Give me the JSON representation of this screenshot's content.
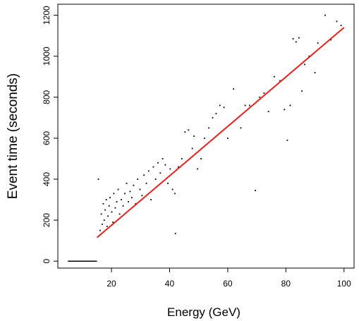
{
  "chart_data": {
    "type": "scatter",
    "xlabel": "Energy (GeV)",
    "ylabel": "Event time (seconds)",
    "xlim": [
      3,
      102
    ],
    "ylim": [
      -20,
      1240
    ],
    "x_ticks": [
      20,
      40,
      60,
      80,
      100
    ],
    "x_tick_labels": [
      "20",
      "40",
      "60",
      "80",
      "100"
    ],
    "y_ticks": [
      0,
      200,
      400,
      600,
      800,
      1000,
      1200
    ],
    "y_tick_labels": [
      "0",
      "200",
      "400",
      "600",
      "800",
      "1000",
      "1200"
    ],
    "grid": false,
    "legend": "none",
    "colors": {
      "points": "#000000",
      "fit_line": "#e8201a",
      "baseline": "#000000"
    },
    "series": [
      {
        "kind": "points",
        "points": [
          [
            15.5,
            400
          ],
          [
            16.1,
            150
          ],
          [
            16.5,
            230
          ],
          [
            16.8,
            180
          ],
          [
            17.2,
            280
          ],
          [
            17.5,
            200
          ],
          [
            17.8,
            250
          ],
          [
            18.2,
            300
          ],
          [
            18.5,
            170
          ],
          [
            18.8,
            220
          ],
          [
            19.2,
            270
          ],
          [
            19.5,
            310
          ],
          [
            20.1,
            240
          ],
          [
            20.5,
            190
          ],
          [
            20.8,
            330
          ],
          [
            21.3,
            260
          ],
          [
            21.8,
            290
          ],
          [
            22.3,
            350
          ],
          [
            22.8,
            230
          ],
          [
            23.4,
            300
          ],
          [
            24.0,
            270
          ],
          [
            24.6,
            330
          ],
          [
            25.2,
            380
          ],
          [
            25.8,
            290
          ],
          [
            26.4,
            340
          ],
          [
            27.0,
            310
          ],
          [
            27.6,
            370
          ],
          [
            28.3,
            280
          ],
          [
            29.0,
            400
          ],
          [
            29.8,
            350
          ],
          [
            30.5,
            320
          ],
          [
            31.2,
            420
          ],
          [
            32.0,
            380
          ],
          [
            32.8,
            440
          ],
          [
            33.6,
            300
          ],
          [
            34.4,
            460
          ],
          [
            35.2,
            400
          ],
          [
            36.0,
            480
          ],
          [
            36.8,
            430
          ],
          [
            37.6,
            500
          ],
          [
            38.5,
            470
          ],
          [
            39.4,
            380
          ],
          [
            40.2,
            450
          ],
          [
            41.0,
            350
          ],
          [
            41.8,
            330
          ],
          [
            42.0,
            135
          ],
          [
            43.0,
            460
          ],
          [
            44.2,
            500
          ],
          [
            45.3,
            630
          ],
          [
            46.5,
            640
          ],
          [
            47.8,
            550
          ],
          [
            48.4,
            610
          ],
          [
            49.6,
            450
          ],
          [
            50.8,
            500
          ],
          [
            52.0,
            600
          ],
          [
            53.5,
            650
          ],
          [
            54.8,
            700
          ],
          [
            56.0,
            720
          ],
          [
            57.3,
            760
          ],
          [
            58.7,
            750
          ],
          [
            60.0,
            600
          ],
          [
            62.0,
            840
          ],
          [
            64.5,
            650
          ],
          [
            66.0,
            760
          ],
          [
            67.5,
            760
          ],
          [
            69.5,
            345
          ],
          [
            71.0,
            800
          ],
          [
            72.5,
            820
          ],
          [
            74.0,
            730
          ],
          [
            76.0,
            900
          ],
          [
            78.0,
            880
          ],
          [
            79.5,
            740
          ],
          [
            80.5,
            590
          ],
          [
            81.5,
            760
          ],
          [
            82.5,
            1085
          ],
          [
            83.5,
            1070
          ],
          [
            84.5,
            1090
          ],
          [
            85.5,
            830
          ],
          [
            86.5,
            960
          ],
          [
            88.0,
            1000
          ],
          [
            90.0,
            920
          ],
          [
            91.0,
            1065
          ],
          [
            93.5,
            1200
          ],
          [
            95.5,
            1080
          ],
          [
            97.5,
            1170
          ],
          [
            99.0,
            1150
          ]
        ]
      },
      {
        "kind": "line",
        "points": [
          [
            15,
            115
          ],
          [
            100,
            1140
          ]
        ]
      },
      {
        "kind": "line",
        "points": [
          [
            5,
            0
          ],
          [
            15,
            0
          ]
        ]
      }
    ]
  }
}
